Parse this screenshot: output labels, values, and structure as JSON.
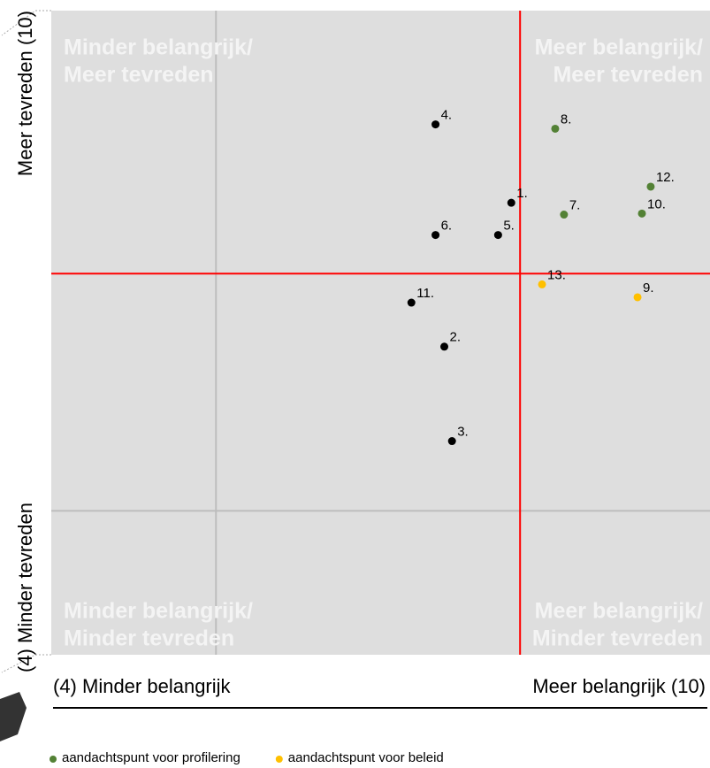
{
  "chart_data": {
    "type": "scatter",
    "xlabel_low": "(4) Minder belangrijk",
    "xlabel_high": "Meer belangrijk (10)",
    "ylabel_high": "Meer tevreden (10)",
    "ylabel_low": "(4) Minder tevreden",
    "quadrants": [
      [
        "Minder belangrijk/",
        "Meer tevreden"
      ],
      [
        "Meer belangrijk/",
        "Meer tevreden"
      ],
      [
        "Minder belangrijk/",
        "Minder tevreden"
      ],
      [
        "Meer belangrijk/",
        "Minder tevreden"
      ]
    ],
    "xlim": [
      4,
      10
    ],
    "ylim": [
      4,
      10
    ],
    "xticks": [
      5.5
    ],
    "yticks": [
      5.34
    ],
    "grid": true,
    "reference_x": 8.27,
    "reference_y": 7.55,
    "reference_color": "#ff0000",
    "series": [
      {
        "color": "#000000",
        "labels": [
          "4.",
          "1.",
          "6.",
          "5.",
          "11.",
          "2.",
          "3."
        ],
        "x": [
          7.5,
          8.19,
          7.5,
          8.07,
          7.28,
          7.58,
          7.65
        ],
        "values": [
          8.94,
          8.21,
          7.91,
          7.91,
          7.28,
          6.87,
          5.99
        ]
      },
      {
        "name": "aandachtspunt voor profilering",
        "color": "#538135",
        "labels": [
          "8.",
          "12.",
          "7.",
          "10."
        ],
        "x": [
          8.59,
          9.46,
          8.67,
          9.38
        ],
        "values": [
          8.9,
          8.36,
          8.1,
          8.11
        ]
      },
      {
        "name": "aandachtspunt voor beleid",
        "color": "#ffc000",
        "labels": [
          "13.",
          "9."
        ],
        "x": [
          8.47,
          9.34
        ],
        "values": [
          7.45,
          7.33
        ]
      }
    ]
  }
}
